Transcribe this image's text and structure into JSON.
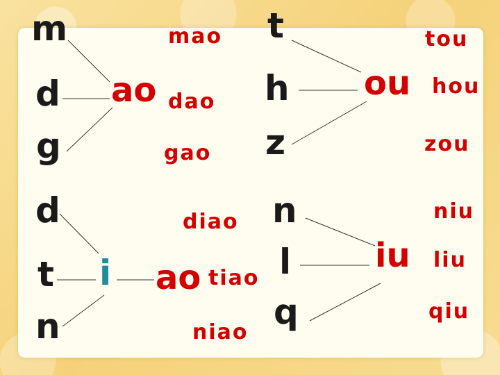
{
  "group_ao": {
    "initials": [
      "m",
      "d",
      "g"
    ],
    "final": "ao",
    "syllables": [
      "mao",
      "dao",
      "gao"
    ]
  },
  "group_ou": {
    "initials": [
      "t",
      "h",
      "z"
    ],
    "final": "ou",
    "syllables": [
      "tou",
      "hou",
      "zou"
    ]
  },
  "group_iao": {
    "initials": [
      "d",
      "t",
      "n"
    ],
    "medial": "i",
    "final": "ao",
    "syllables": [
      "diao",
      "tiao",
      "niao"
    ]
  },
  "group_iu": {
    "initials": [
      "n",
      "l",
      "q"
    ],
    "final": "iu",
    "syllables": [
      "niu",
      "liu",
      "qiu"
    ]
  },
  "colors": {
    "initial": "#1a1a1a",
    "final": "#d40000",
    "medial": "#1e8c9a",
    "background": "#f7d98a",
    "card": "#fffdf0"
  }
}
